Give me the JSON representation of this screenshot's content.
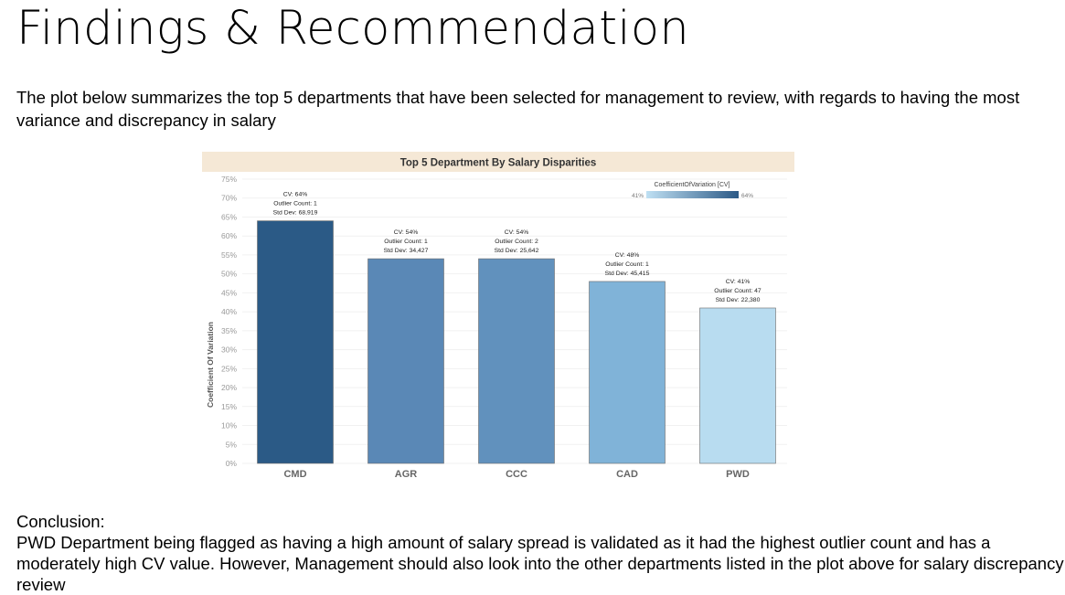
{
  "heading": "Findings & Recommendation",
  "intro": "The plot below summarizes the top 5 departments that have been selected for management to review, with regards to having the most variance and discrepancy in salary",
  "conclusion_label": "Conclusion:",
  "conclusion_text": "PWD Department being flagged as having a high amount of salary spread is validated as it had the highest outlier count and has a moderately high CV value. However, Management should also look into the other departments listed in the plot above for salary discrepancy review",
  "chart_data": {
    "type": "bar",
    "title": "Top 5 Department By Salary Disparities",
    "xlabel": "",
    "ylabel": "Coefficient Of Variation",
    "ylim": [
      0,
      75
    ],
    "yticks": [
      "75%",
      "70%",
      "65%",
      "60%",
      "55%",
      "50%",
      "45%",
      "40%",
      "35%",
      "30%",
      "25%",
      "20%",
      "15%",
      "10%",
      "5%",
      "0%"
    ],
    "categories": [
      "CMD",
      "AGR",
      "CCC",
      "CAD",
      "PWD"
    ],
    "values": [
      64,
      54,
      54,
      48,
      41
    ],
    "labels": [
      [
        "CV: 64%",
        "Outlier Count: 1",
        "Std Dev: 68,919"
      ],
      [
        "CV: 54%",
        "Outlier Count: 1",
        "Std Dev: 34,427"
      ],
      [
        "CV: 54%",
        "Outlier Count: 2",
        "Std Dev: 25,642"
      ],
      [
        "CV: 48%",
        "Outlier Count: 1",
        "Std Dev: 45,415"
      ],
      [
        "CV: 41%",
        "Outlier Count: 47",
        "Std Dev: 22,380"
      ]
    ],
    "legend": {
      "title": "CoefficientOfVariation [CV]",
      "min_label": "41%",
      "max_label": "64%",
      "min_color": "#bfe0f3",
      "max_color": "#2b5986",
      "placement": "top-right"
    },
    "colors": [
      "#2b5a86",
      "#5a88b6",
      "#6191bd",
      "#80b3d8",
      "#b8dcf0"
    ],
    "title_bg": "#f5e8d6"
  }
}
